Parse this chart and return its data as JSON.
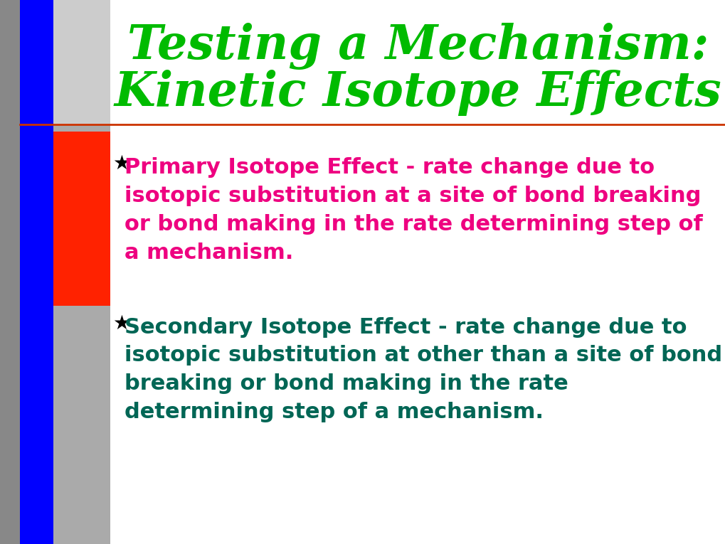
{
  "title_line1": "Testing a Mechanism:",
  "title_line2": "Kinetic Isotope Effects",
  "title_color": "#00BB00",
  "title_fontsize": 48,
  "background_color": "#FFFFFF",
  "bullet1_color": "#EE0080",
  "bullet2_color": "#006655",
  "bullet1_lines": [
    "Primary Isotope Effect - rate change due to",
    "isotopic substitution at a site of bond breaking",
    "or bond making in the rate determining step of",
    "a mechanism."
  ],
  "bullet2_lines": [
    "Secondary Isotope Effect - rate change due to",
    "isotopic substitution at other than a site of bond",
    "breaking or bond making in the rate",
    "determining step of a mechanism."
  ],
  "bullet_fontsize": 22,
  "blue_color": "#0000FF",
  "red_color": "#FF2200",
  "dark_gray_color": "#888888",
  "mid_gray_color": "#AAAAAA",
  "light_gray_color": "#CCCCCC",
  "separator_line_color": "#CC3300",
  "fig_width": 10.2,
  "fig_height": 7.65,
  "dpi": 100
}
